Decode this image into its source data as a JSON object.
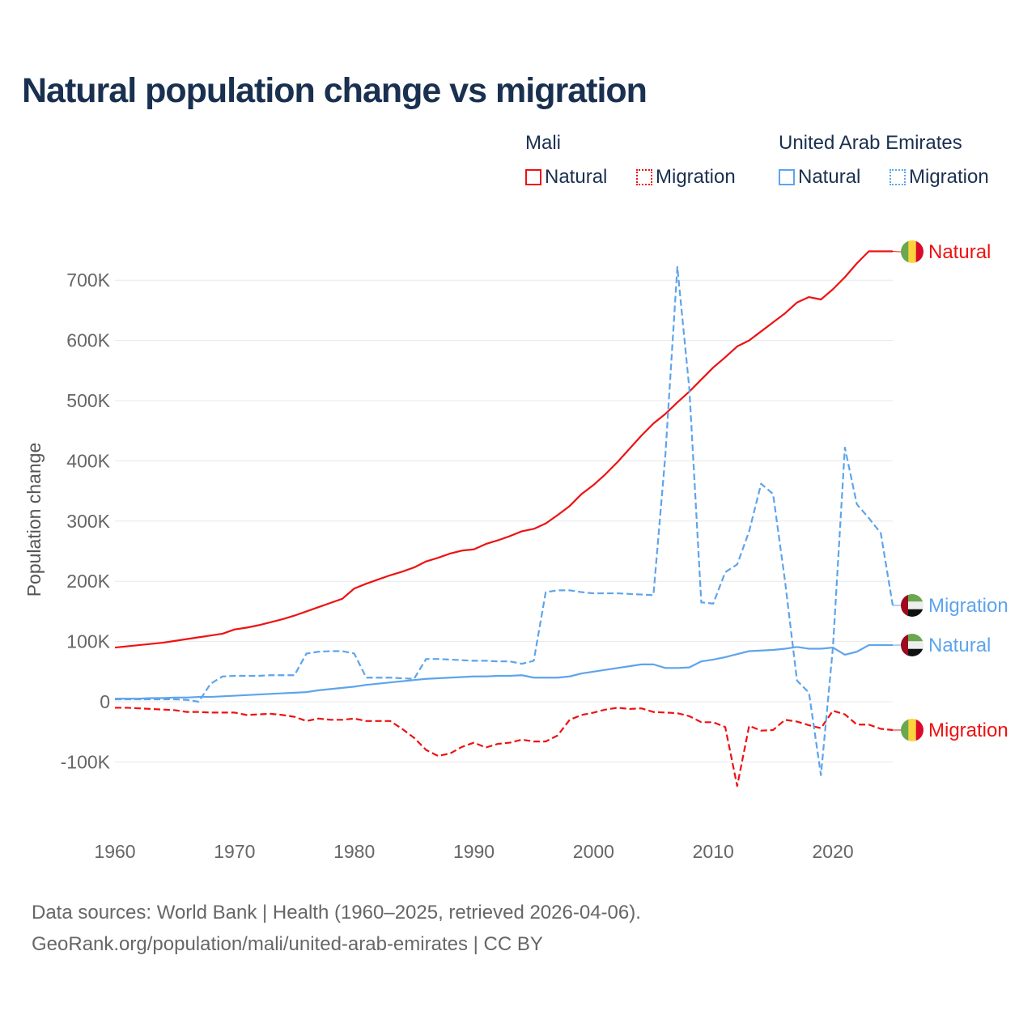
{
  "title": "Natural population change vs migration",
  "legend": {
    "groups": [
      {
        "country": "Mali",
        "items": [
          {
            "label": "Natural",
            "color": "#ee1111",
            "style": "solid"
          },
          {
            "label": "Migration",
            "color": "#ee1111",
            "style": "dotted"
          }
        ]
      },
      {
        "country": "United Arab Emirates",
        "items": [
          {
            "label": "Natural",
            "color": "#5ea4ec",
            "style": "solid"
          },
          {
            "label": "Migration",
            "color": "#5ea4ec",
            "style": "dotted"
          }
        ]
      }
    ]
  },
  "footer": {
    "line1": "Data sources: World Bank | Health (1960–2025, retrieved 2026-04-06).",
    "line2": "GeoRank.org/population/mali/united-arab-emirates | CC BY"
  },
  "chart_data": {
    "type": "line",
    "title": "Natural population change vs migration",
    "xlabel": "",
    "ylabel": "Population change",
    "xlim": [
      1960,
      2025
    ],
    "ylim": [
      -150000,
      750000
    ],
    "xticks": [
      1960,
      1970,
      1980,
      1990,
      2000,
      2010,
      2020
    ],
    "xtick_labels": [
      "1960",
      "1970",
      "1980",
      "1990",
      "2000",
      "2010",
      "2020"
    ],
    "yticks": [
      -100000,
      0,
      100000,
      200000,
      300000,
      400000,
      500000,
      600000,
      700000
    ],
    "ytick_labels": [
      "-100K",
      "0",
      "100K",
      "200K",
      "300K",
      "400K",
      "500K",
      "600K",
      "700K"
    ],
    "grid": true,
    "x_start": 1960,
    "series": [
      {
        "name": "Mali Natural",
        "end_label": "Natural",
        "color": "#ee1111",
        "dash": "solid",
        "flag": "mali",
        "values": [
          90,
          92,
          94,
          96,
          98,
          101,
          104,
          107,
          110,
          113,
          120,
          123,
          127,
          132,
          137,
          143,
          150,
          157,
          164,
          171,
          188,
          196,
          203,
          210,
          216,
          223,
          233,
          239,
          246,
          251,
          253,
          262,
          268,
          275,
          283,
          287,
          296,
          310,
          325,
          345,
          360,
          378,
          398,
          420,
          442,
          462,
          478,
          497,
          515,
          535,
          555,
          572,
          590,
          600,
          615,
          630,
          645,
          663,
          672,
          668,
          685,
          705,
          728,
          748,
          748,
          748
        ]
      },
      {
        "name": "Mali Migration",
        "end_label": "Migration",
        "color": "#ee1111",
        "dash": "dashed",
        "flag": "mali",
        "values": [
          -10,
          -10,
          -11,
          -12,
          -13,
          -14,
          -17,
          -17,
          -18,
          -18,
          -18,
          -22,
          -21,
          -20,
          -22,
          -25,
          -32,
          -28,
          -30,
          -30,
          -28,
          -32,
          -32,
          -32,
          -45,
          -60,
          -80,
          -90,
          -86,
          -75,
          -68,
          -76,
          -70,
          -68,
          -63,
          -66,
          -66,
          -56,
          -30,
          -22,
          -18,
          -13,
          -10,
          -12,
          -11,
          -17,
          -18,
          -19,
          -24,
          -34,
          -34,
          -42,
          -140,
          -40,
          -48,
          -47,
          -30,
          -33,
          -39,
          -44,
          -15,
          -21,
          -38,
          -38,
          -45,
          -47
        ]
      },
      {
        "name": "United Arab Emirates Natural",
        "end_label": "Natural",
        "color": "#5ea4ec",
        "dash": "solid",
        "flag": "uae",
        "values": [
          5,
          5,
          5,
          6,
          6,
          7,
          7,
          8,
          8,
          9,
          10,
          11,
          12,
          13,
          14,
          15,
          16,
          19,
          21,
          23,
          25,
          28,
          30,
          32,
          34,
          36,
          38,
          39,
          40,
          41,
          42,
          42,
          43,
          43,
          44,
          40,
          40,
          40,
          42,
          47,
          50,
          53,
          56,
          59,
          62,
          62,
          56,
          56,
          57,
          67,
          70,
          74,
          79,
          84,
          85,
          86,
          88,
          91,
          88,
          88,
          90,
          78,
          83,
          94,
          94,
          94
        ]
      },
      {
        "name": "United Arab Emirates Migration",
        "end_label": "Migration",
        "color": "#5ea4ec",
        "dash": "dashed",
        "flag": "uae",
        "values": [
          4,
          4,
          4,
          4,
          4,
          4,
          3,
          0,
          30,
          42,
          43,
          43,
          43,
          44,
          44,
          44,
          80,
          83,
          84,
          84,
          80,
          40,
          40,
          40,
          39,
          38,
          71,
          71,
          70,
          69,
          68,
          68,
          67,
          67,
          63,
          68,
          182,
          185,
          185,
          182,
          180,
          180,
          180,
          179,
          178,
          177,
          410,
          722,
          520,
          165,
          163,
          215,
          228,
          283,
          362,
          345,
          200,
          35,
          15,
          -122,
          90,
          422,
          328,
          305,
          280,
          160
        ]
      }
    ],
    "value_unit": "thousands"
  }
}
